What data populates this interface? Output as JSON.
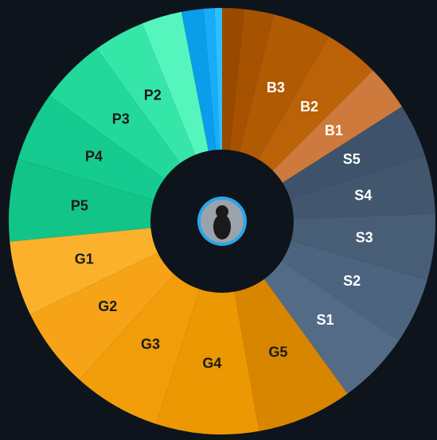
{
  "chart_data": {
    "type": "donut",
    "categories": [
      null,
      null,
      "B3",
      "B2",
      "B1",
      "S5",
      "S4",
      "S3",
      "S2",
      "S1",
      "G5",
      "G4",
      "G3",
      "G2",
      "G1",
      "P5",
      "P4",
      "P3",
      "P2",
      null,
      null,
      null,
      null
    ],
    "values": [
      6,
      8,
      16,
      15,
      12.5,
      14.5,
      16,
      18,
      18,
      20,
      26,
      28,
      24,
      22,
      20.5,
      22.5,
      19,
      18,
      14,
      11,
      6,
      3,
      2
    ],
    "colors": [
      "#9a4a00",
      "#a65200",
      "#b05a04",
      "#bb6108",
      "#cd7a3c",
      "#3e536b",
      "#42566d",
      "#485d76",
      "#4d6480",
      "#546b87",
      "#d88600",
      "#ec9802",
      "#f19d0a",
      "#f6a318",
      "#fbb12c",
      "#12c488",
      "#16cb8f",
      "#22d89b",
      "#36e6a9",
      "#55f5bd",
      "#0a9eea",
      "#18adf9",
      "#2fbfff"
    ],
    "label_colors": [
      "#ffffff",
      "#ffffff",
      "#ffffff",
      "#ffffff",
      "#ffffff",
      "#ffffff",
      "#ffffff",
      "#ffffff",
      "#ffffff",
      "#ffffff",
      "#1a1a1a",
      "#1a1a1a",
      "#1a1a1a",
      "#1a1a1a",
      "#1a1a1a",
      "#1a1a1a",
      "#1a1a1a",
      "#1a1a1a",
      "#1a1a1a",
      "#1a1a1a",
      "#1a1a1a",
      "#1a1a1a",
      "#1a1a1a"
    ]
  }
}
